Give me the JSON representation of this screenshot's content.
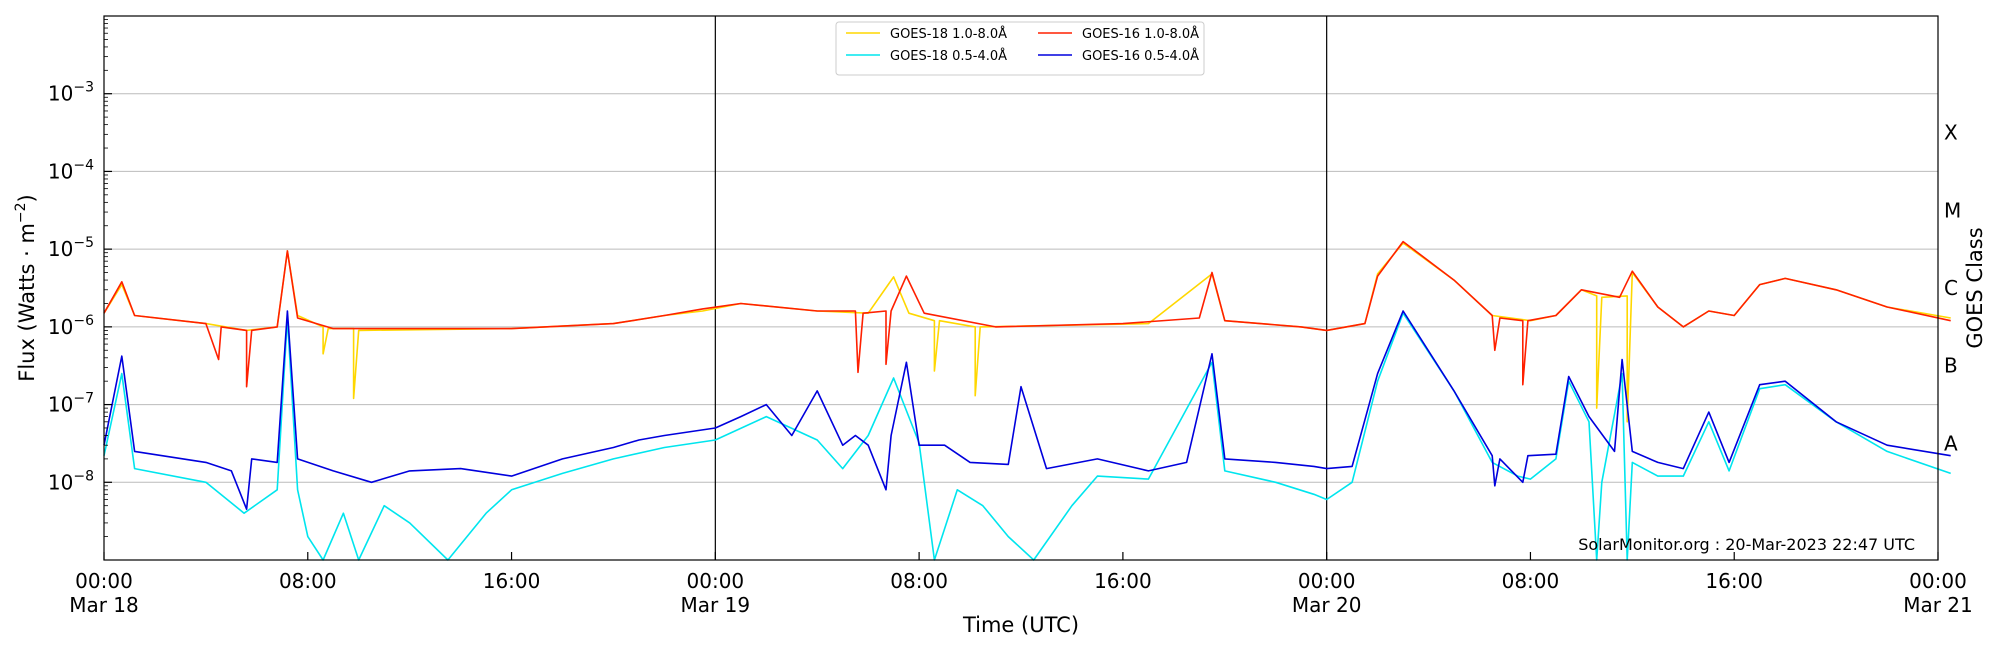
{
  "chart_data": {
    "type": "line",
    "xlabel": "Time (UTC)",
    "ylabel": "Flux (Watts · m",
    "ylabel_superscript": "−2",
    "ylabel_close": ")",
    "y_scale": "log",
    "ylim": [
      1e-09,
      0.01
    ],
    "xlim_hours": [
      0,
      72
    ],
    "x_ticks": [
      {
        "hour": 0,
        "line1": "00:00",
        "line2": "Mar 18"
      },
      {
        "hour": 8,
        "line1": "08:00",
        "line2": ""
      },
      {
        "hour": 16,
        "line1": "16:00",
        "line2": ""
      },
      {
        "hour": 24,
        "line1": "00:00",
        "line2": "Mar 19"
      },
      {
        "hour": 32,
        "line1": "08:00",
        "line2": ""
      },
      {
        "hour": 40,
        "line1": "16:00",
        "line2": ""
      },
      {
        "hour": 48,
        "line1": "00:00",
        "line2": "Mar 20"
      },
      {
        "hour": 56,
        "line1": "08:00",
        "line2": ""
      },
      {
        "hour": 64,
        "line1": "16:00",
        "line2": ""
      },
      {
        "hour": 72,
        "line1": "00:00",
        "line2": "Mar 21"
      }
    ],
    "y_ticks": [
      {
        "exp": -8,
        "base": "10",
        "sup": "−8"
      },
      {
        "exp": -7,
        "base": "10",
        "sup": "−7"
      },
      {
        "exp": -6,
        "base": "10",
        "sup": "−6"
      },
      {
        "exp": -5,
        "base": "10",
        "sup": "−5"
      },
      {
        "exp": -4,
        "base": "10",
        "sup": "−4"
      },
      {
        "exp": -3,
        "base": "10",
        "sup": "−3"
      }
    ],
    "right_axis_label": "GOES Class",
    "class_labels": [
      {
        "label": "A",
        "exp": -7.5
      },
      {
        "label": "B",
        "exp": -6.5
      },
      {
        "label": "C",
        "exp": -5.5
      },
      {
        "label": "M",
        "exp": -4.5
      },
      {
        "label": "X",
        "exp": -3.5
      }
    ],
    "day_boundaries_hours": [
      24,
      48
    ],
    "grid": "horizontal",
    "legend_position": "top-center",
    "watermark": "SolarMonitor.org : 20-Mar-2023 22:47 UTC",
    "series": [
      {
        "name": "GOES-18 1.0-8.0Å",
        "color": "#ffd700",
        "points": [
          [
            0,
            1.5e-06
          ],
          [
            0.7,
            3.5e-06
          ],
          [
            1.2,
            1.4e-06
          ],
          [
            4,
            1.1e-06
          ],
          [
            5.6,
            9e-07
          ],
          [
            6.8,
            1e-06
          ],
          [
            7.2,
            9.5e-06
          ],
          [
            7.6,
            1.4e-06
          ],
          [
            8.6,
            1e-06
          ],
          [
            8.6,
            4.5e-07
          ],
          [
            8.8,
            9.5e-07
          ],
          [
            9.8,
            9.5e-07
          ],
          [
            9.8,
            1.2e-07
          ],
          [
            10,
            9e-07
          ],
          [
            16,
            9.5e-07
          ],
          [
            20,
            1.1e-06
          ],
          [
            22,
            1.4e-06
          ],
          [
            23.5,
            1.6e-06
          ],
          [
            25,
            2e-06
          ],
          [
            28,
            1.6e-06
          ],
          [
            30,
            1.5e-06
          ],
          [
            31,
            4.4e-06
          ],
          [
            31.6,
            1.5e-06
          ],
          [
            32.6,
            1.2e-06
          ],
          [
            32.6,
            2.7e-07
          ],
          [
            32.8,
            1.2e-06
          ],
          [
            34.2,
            1e-06
          ],
          [
            34.2,
            1.3e-07
          ],
          [
            34.4,
            1e-06
          ],
          [
            41,
            1.1e-06
          ],
          [
            43.5,
            4.8e-06
          ],
          [
            44,
            1.2e-06
          ],
          [
            47,
            1e-06
          ],
          [
            48,
            9e-07
          ],
          [
            49.5,
            1.1e-06
          ],
          [
            50,
            4.8e-06
          ],
          [
            51,
            1.2e-05
          ],
          [
            53,
            4e-06
          ],
          [
            54.5,
            1.4e-06
          ],
          [
            56,
            1.2e-06
          ],
          [
            57,
            1.4e-06
          ],
          [
            58,
            3e-06
          ],
          [
            58.6,
            2.5e-06
          ],
          [
            58.6,
            9e-08
          ],
          [
            58.8,
            2.4e-06
          ],
          [
            59.8,
            2.5e-06
          ],
          [
            59.8,
            6e-08
          ],
          [
            60,
            5e-06
          ],
          [
            61,
            1.8e-06
          ],
          [
            62,
            1e-06
          ],
          [
            63,
            1.6e-06
          ],
          [
            64,
            1.4e-06
          ],
          [
            65,
            3.5e-06
          ],
          [
            66,
            4.2e-06
          ],
          [
            68,
            3e-06
          ],
          [
            70,
            1.8e-06
          ],
          [
            72.5,
            1.3e-06
          ]
        ]
      },
      {
        "name": "GOES-18 0.5-4.0Å",
        "color": "#00e5ee",
        "points": [
          [
            0,
            2.2e-08
          ],
          [
            0.7,
            2.5e-07
          ],
          [
            1.2,
            1.5e-08
          ],
          [
            4,
            1e-08
          ],
          [
            5.5,
            4e-09
          ],
          [
            6.8,
            8e-09
          ],
          [
            7.2,
            1.3e-06
          ],
          [
            7.6,
            8e-09
          ],
          [
            8,
            2e-09
          ],
          [
            8.6,
            1e-09
          ],
          [
            9.4,
            4e-09
          ],
          [
            10,
            1e-09
          ],
          [
            11,
            5e-09
          ],
          [
            12,
            3e-09
          ],
          [
            13.5,
            1e-09
          ],
          [
            15,
            4e-09
          ],
          [
            16,
            8e-09
          ],
          [
            18,
            1.3e-08
          ],
          [
            20,
            2e-08
          ],
          [
            22,
            2.8e-08
          ],
          [
            24,
            3.5e-08
          ],
          [
            26,
            7e-08
          ],
          [
            28,
            3.5e-08
          ],
          [
            29,
            1.5e-08
          ],
          [
            30,
            4e-08
          ],
          [
            31,
            2.2e-07
          ],
          [
            32,
            3.2e-08
          ],
          [
            32.6,
            1e-09
          ],
          [
            33.5,
            8e-09
          ],
          [
            34.5,
            5e-09
          ],
          [
            35.5,
            2e-09
          ],
          [
            36.5,
            1e-09
          ],
          [
            38,
            5e-09
          ],
          [
            39,
            1.2e-08
          ],
          [
            41,
            1.1e-08
          ],
          [
            43.5,
            3.5e-07
          ],
          [
            44,
            1.4e-08
          ],
          [
            46,
            1e-08
          ],
          [
            47.5,
            7e-09
          ],
          [
            48,
            6e-09
          ],
          [
            49,
            1e-08
          ],
          [
            50,
            2e-07
          ],
          [
            51,
            1.5e-06
          ],
          [
            53,
            1.5e-07
          ],
          [
            54.5,
            1.8e-08
          ],
          [
            55.5,
            1.2e-08
          ],
          [
            56,
            1.1e-08
          ],
          [
            57,
            2e-08
          ],
          [
            57.5,
            2e-07
          ],
          [
            58.3,
            6e-08
          ],
          [
            58.6,
            1e-09
          ],
          [
            58.8,
            1e-08
          ],
          [
            59.6,
            2.5e-07
          ],
          [
            59.8,
            1e-09
          ],
          [
            60,
            1.8e-08
          ],
          [
            61,
            1.2e-08
          ],
          [
            62,
            1.2e-08
          ],
          [
            63,
            6e-08
          ],
          [
            63.8,
            1.4e-08
          ],
          [
            65,
            1.6e-07
          ],
          [
            66,
            1.8e-07
          ],
          [
            68,
            6e-08
          ],
          [
            70,
            2.5e-08
          ],
          [
            72.5,
            1.3e-08
          ]
        ]
      },
      {
        "name": "GOES-16 1.0-8.0Å",
        "color": "#ff2000",
        "points": [
          [
            0,
            1.5e-06
          ],
          [
            0.7,
            3.8e-06
          ],
          [
            1.2,
            1.4e-06
          ],
          [
            4,
            1.1e-06
          ],
          [
            4.5,
            3.8e-07
          ],
          [
            4.6,
            1e-06
          ],
          [
            5.6,
            9e-07
          ],
          [
            5.6,
            1.7e-07
          ],
          [
            5.8,
            9e-07
          ],
          [
            6.8,
            1e-06
          ],
          [
            7.2,
            9.5e-06
          ],
          [
            7.6,
            1.3e-06
          ],
          [
            9,
            9.5e-07
          ],
          [
            12,
            9.5e-07
          ],
          [
            16,
            9.5e-07
          ],
          [
            20,
            1.1e-06
          ],
          [
            22,
            1.4e-06
          ],
          [
            23.5,
            1.7e-06
          ],
          [
            25,
            2e-06
          ],
          [
            28,
            1.6e-06
          ],
          [
            29.5,
            1.6e-06
          ],
          [
            29.6,
            2.6e-07
          ],
          [
            29.8,
            1.5e-06
          ],
          [
            30.7,
            1.6e-06
          ],
          [
            30.7,
            3.3e-07
          ],
          [
            30.9,
            1.6e-06
          ],
          [
            31.5,
            4.5e-06
          ],
          [
            32.2,
            1.5e-06
          ],
          [
            35,
            1e-06
          ],
          [
            40,
            1.1e-06
          ],
          [
            43,
            1.3e-06
          ],
          [
            43.5,
            5e-06
          ],
          [
            44,
            1.2e-06
          ],
          [
            47,
            1e-06
          ],
          [
            48,
            9e-07
          ],
          [
            49.5,
            1.1e-06
          ],
          [
            50,
            4.5e-06
          ],
          [
            51,
            1.25e-05
          ],
          [
            53,
            4e-06
          ],
          [
            54.5,
            1.4e-06
          ],
          [
            54.6,
            5e-07
          ],
          [
            54.8,
            1.3e-06
          ],
          [
            55.7,
            1.2e-06
          ],
          [
            55.7,
            1.8e-07
          ],
          [
            55.9,
            1.2e-06
          ],
          [
            57,
            1.4e-06
          ],
          [
            58,
            3e-06
          ],
          [
            59.5,
            2.4e-06
          ],
          [
            60,
            5.2e-06
          ],
          [
            61,
            1.8e-06
          ],
          [
            62,
            1e-06
          ],
          [
            63,
            1.6e-06
          ],
          [
            64,
            1.4e-06
          ],
          [
            65,
            3.5e-06
          ],
          [
            66,
            4.2e-06
          ],
          [
            68,
            3e-06
          ],
          [
            70,
            1.8e-06
          ],
          [
            72.5,
            1.2e-06
          ]
        ]
      },
      {
        "name": "GOES-16 0.5-4.0Å",
        "color": "#0000dd",
        "points": [
          [
            0,
            3e-08
          ],
          [
            0.7,
            4.2e-07
          ],
          [
            1.2,
            2.5e-08
          ],
          [
            4,
            1.8e-08
          ],
          [
            5,
            1.4e-08
          ],
          [
            5.6,
            4.5e-09
          ],
          [
            5.8,
            2e-08
          ],
          [
            6.8,
            1.8e-08
          ],
          [
            7.2,
            1.6e-06
          ],
          [
            7.6,
            2e-08
          ],
          [
            9,
            1.4e-08
          ],
          [
            10.5,
            1e-08
          ],
          [
            12,
            1.4e-08
          ],
          [
            14,
            1.5e-08
          ],
          [
            16,
            1.2e-08
          ],
          [
            18,
            2e-08
          ],
          [
            20,
            2.8e-08
          ],
          [
            21,
            3.5e-08
          ],
          [
            22,
            4e-08
          ],
          [
            24,
            5e-08
          ],
          [
            25,
            7e-08
          ],
          [
            26,
            1e-07
          ],
          [
            27,
            4e-08
          ],
          [
            28,
            1.5e-07
          ],
          [
            29,
            3e-08
          ],
          [
            29.5,
            4e-08
          ],
          [
            30,
            3e-08
          ],
          [
            30.7,
            8e-09
          ],
          [
            30.9,
            4e-08
          ],
          [
            31.5,
            3.5e-07
          ],
          [
            32,
            3e-08
          ],
          [
            33,
            3e-08
          ],
          [
            34,
            1.8e-08
          ],
          [
            35.5,
            1.7e-08
          ],
          [
            36,
            1.7e-07
          ],
          [
            37,
            1.5e-08
          ],
          [
            39,
            2e-08
          ],
          [
            41,
            1.4e-08
          ],
          [
            42.5,
            1.8e-08
          ],
          [
            43.5,
            4.5e-07
          ],
          [
            44,
            2e-08
          ],
          [
            46,
            1.8e-08
          ],
          [
            47.5,
            1.6e-08
          ],
          [
            48,
            1.5e-08
          ],
          [
            49,
            1.6e-08
          ],
          [
            50,
            2.5e-07
          ],
          [
            51,
            1.6e-06
          ],
          [
            53,
            1.5e-07
          ],
          [
            54.5,
            2.2e-08
          ],
          [
            54.6,
            9e-09
          ],
          [
            54.8,
            2e-08
          ],
          [
            55.7,
            1e-08
          ],
          [
            55.9,
            2.2e-08
          ],
          [
            57,
            2.3e-08
          ],
          [
            57.5,
            2.3e-07
          ],
          [
            58.3,
            7e-08
          ],
          [
            59.3,
            2.5e-08
          ],
          [
            59.6,
            3.8e-07
          ],
          [
            60,
            2.5e-08
          ],
          [
            61,
            1.8e-08
          ],
          [
            62,
            1.5e-08
          ],
          [
            63,
            8e-08
          ],
          [
            63.8,
            1.8e-08
          ],
          [
            65,
            1.8e-07
          ],
          [
            66,
            2e-07
          ],
          [
            68,
            6e-08
          ],
          [
            70,
            3e-08
          ],
          [
            72.5,
            2.2e-08
          ]
        ]
      }
    ]
  }
}
